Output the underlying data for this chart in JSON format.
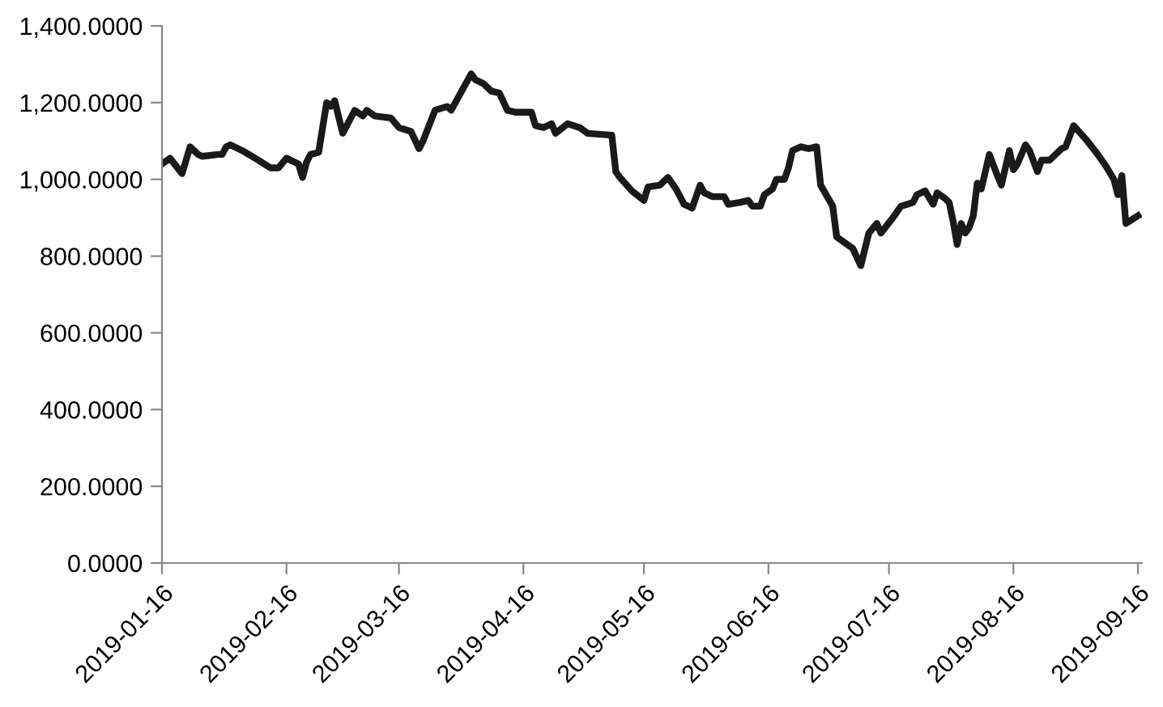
{
  "chart_data": {
    "type": "line",
    "x": [
      "2019-01-16",
      "2019-01-18",
      "2019-01-21",
      "2019-01-23",
      "2019-01-25",
      "2019-01-26",
      "2019-01-30",
      "2019-01-31",
      "2019-02-01",
      "2019-02-02",
      "2019-02-05",
      "2019-02-09",
      "2019-02-12",
      "2019-02-14",
      "2019-02-16",
      "2019-02-19",
      "2019-02-20",
      "2019-02-21",
      "2019-02-22",
      "2019-02-24",
      "2019-02-26",
      "2019-02-27",
      "2019-02-28",
      "2019-03-02",
      "2019-03-05",
      "2019-03-07",
      "2019-03-08",
      "2019-03-10",
      "2019-03-14",
      "2019-03-16",
      "2019-03-19",
      "2019-03-21",
      "2019-03-22",
      "2019-03-25",
      "2019-03-28",
      "2019-03-29",
      "2019-04-03",
      "2019-04-04",
      "2019-04-06",
      "2019-04-08",
      "2019-04-10",
      "2019-04-12",
      "2019-04-14",
      "2019-04-18",
      "2019-04-19",
      "2019-04-21",
      "2019-04-23",
      "2019-04-24",
      "2019-04-27",
      "2019-04-30",
      "2019-05-02",
      "2019-05-08",
      "2019-05-09",
      "2019-05-10",
      "2019-05-13",
      "2019-05-16",
      "2019-05-17",
      "2019-05-20",
      "2019-05-22",
      "2019-05-24",
      "2019-05-26",
      "2019-05-28",
      "2019-05-30",
      "2019-05-31",
      "2019-06-02",
      "2019-06-05",
      "2019-06-06",
      "2019-06-09",
      "2019-06-11",
      "2019-06-12",
      "2019-06-14",
      "2019-06-15",
      "2019-06-17",
      "2019-06-18",
      "2019-06-20",
      "2019-06-21",
      "2019-06-22",
      "2019-06-24",
      "2019-06-26",
      "2019-06-28",
      "2019-06-29",
      "2019-07-02",
      "2019-07-03",
      "2019-07-07",
      "2019-07-09",
      "2019-07-11",
      "2019-07-13",
      "2019-07-14",
      "2019-07-17",
      "2019-07-19",
      "2019-07-22",
      "2019-07-23",
      "2019-07-25",
      "2019-07-27",
      "2019-07-28",
      "2019-07-30",
      "2019-07-31",
      "2019-08-01",
      "2019-08-02",
      "2019-08-03",
      "2019-08-04",
      "2019-08-05",
      "2019-08-06",
      "2019-08-07",
      "2019-08-08",
      "2019-08-10",
      "2019-08-12",
      "2019-08-13",
      "2019-08-15",
      "2019-08-16",
      "2019-08-17",
      "2019-08-19",
      "2019-08-20",
      "2019-08-22",
      "2019-08-23",
      "2019-08-25",
      "2019-08-28",
      "2019-08-29",
      "2019-08-31",
      "2019-09-03",
      "2019-09-06",
      "2019-09-08",
      "2019-09-10",
      "2019-09-11",
      "2019-09-12",
      "2019-09-13",
      "2019-09-16"
    ],
    "series": [
      {
        "color": "#1a1a1a",
        "values": [
          1040,
          1055,
          1015,
          1085,
          1065,
          1060,
          1065,
          1065,
          1085,
          1090,
          1075,
          1050,
          1030,
          1030,
          1055,
          1040,
          1005,
          1045,
          1065,
          1070,
          1200,
          1190,
          1205,
          1120,
          1180,
          1165,
          1180,
          1165,
          1160,
          1135,
          1125,
          1080,
          1100,
          1180,
          1190,
          1180,
          1275,
          1260,
          1250,
          1230,
          1225,
          1180,
          1175,
          1175,
          1140,
          1135,
          1145,
          1120,
          1145,
          1135,
          1120,
          1115,
          1020,
          1005,
          970,
          945,
          980,
          985,
          1005,
          975,
          935,
          925,
          985,
          965,
          955,
          955,
          935,
          940,
          945,
          930,
          930,
          960,
          975,
          1000,
          1000,
          1030,
          1075,
          1085,
          1080,
          1085,
          985,
          930,
          850,
          820,
          775,
          860,
          885,
          860,
          900,
          930,
          940,
          960,
          970,
          935,
          965,
          950,
          940,
          890,
          830,
          885,
          860,
          875,
          905,
          990,
          975,
          1065,
          1010,
          985,
          1075,
          1025,
          1040,
          1090,
          1075,
          1020,
          1050,
          1050,
          1080,
          1085,
          1140,
          1105,
          1065,
          1035,
          1000,
          960,
          1010,
          885,
          905
        ]
      }
    ],
    "xlim": [
      "2019-01-16",
      "2019-09-17"
    ],
    "xticks": [
      "2019-01-16",
      "2019-02-16",
      "2019-03-16",
      "2019-04-16",
      "2019-05-16",
      "2019-06-16",
      "2019-07-16",
      "2019-08-16",
      "2019-09-16"
    ],
    "ylim": [
      0,
      1400
    ],
    "yticks": [
      {
        "value": 0,
        "label": "0.0000"
      },
      {
        "value": 200,
        "label": "200.0000"
      },
      {
        "value": 400,
        "label": "400.0000"
      },
      {
        "value": 600,
        "label": "600.0000"
      },
      {
        "value": 800,
        "label": "800.0000"
      },
      {
        "value": 1000,
        "label": "1,000.0000"
      },
      {
        "value": 1200,
        "label": "1,200.0000"
      },
      {
        "value": 1400,
        "label": "1,400.0000"
      }
    ],
    "grid": false,
    "marker": "none",
    "line_style": "solid"
  }
}
